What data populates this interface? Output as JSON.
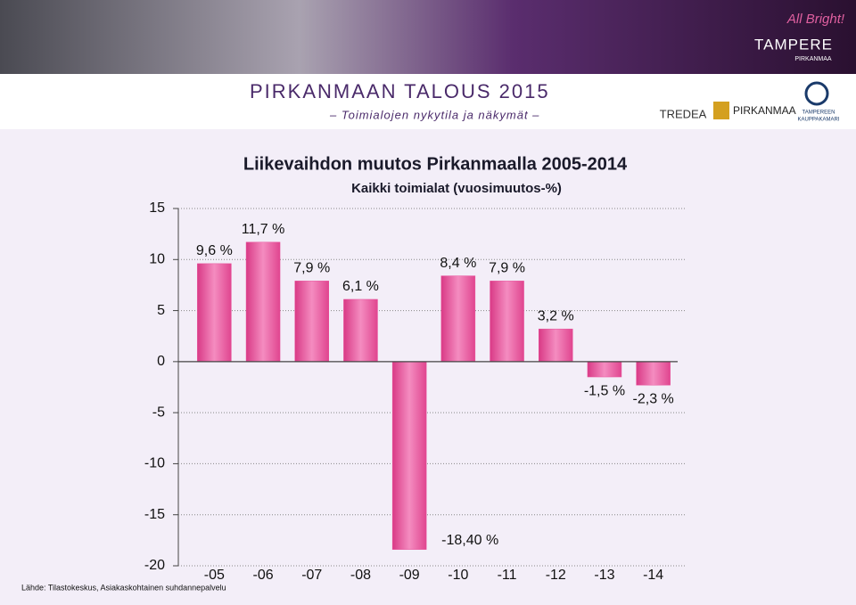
{
  "header": {
    "title": "PIRKANMAAN TALOUS 2015",
    "subtitle": "– Toimialojen nykytila ja näkymät –",
    "logos": [
      "TREDEA",
      "PIRKANMAA",
      "TAMPEREEN",
      "KAUPPAKAMARI",
      "All Bright!",
      "TAMPERE",
      "PIRKANMAA"
    ]
  },
  "source": "Lähde: Tilastokeskus, Asiakaskohtainen suhdannepalvelu",
  "chart_data": {
    "type": "bar",
    "title": "Liikevaihdon muutos Pirkanmaalla 2005-2014",
    "subtitle": "Kaikki toimialat (vuosimuutos-%)",
    "categories": [
      "-05",
      "-06",
      "-07",
      "-08",
      "-09",
      "-10",
      "-11",
      "-12",
      "-13",
      "-14"
    ],
    "values": [
      9.6,
      11.7,
      7.9,
      6.1,
      -18.4,
      8.4,
      7.9,
      3.2,
      -1.5,
      -2.3
    ],
    "value_labels": [
      "9,6 %",
      "11,7 %",
      "7,9 %",
      "6,1 %",
      "-18,40 %",
      "8,4 %",
      "7,9 %",
      "3,2 %",
      "-1,5 %",
      "-2,3 %"
    ],
    "color": "#e8509a",
    "ylim": [
      -20,
      15
    ],
    "yticks": [
      -20,
      -15,
      -10,
      -5,
      0,
      5,
      10,
      15
    ],
    "grid": true
  }
}
